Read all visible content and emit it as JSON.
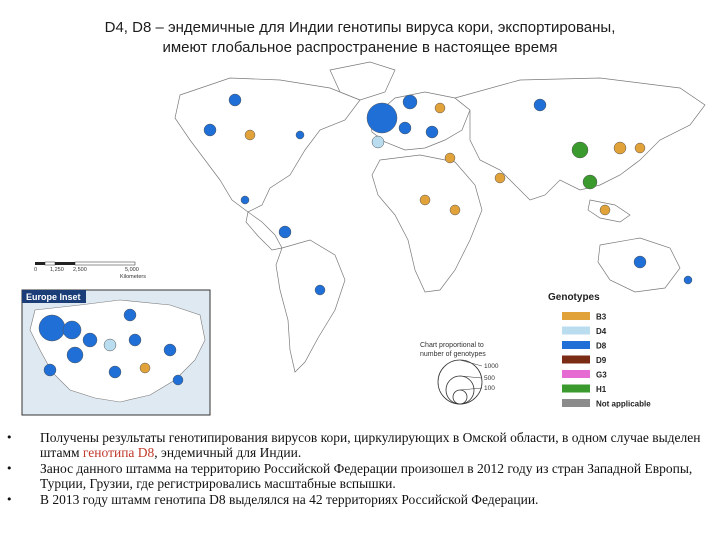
{
  "title": {
    "line1": "D4, D8 – эндемичные для Индии генотипы вируса кори, экспортированы,",
    "line2": "имеют глобальное распространение в настоящее время"
  },
  "map": {
    "scale_labels": [
      "0",
      "1,250",
      "2,500",
      "5,000"
    ],
    "scale_unit": "Kilometers",
    "inset_title": "Europe Inset",
    "chart_note_line1": "Chart proportional to",
    "chart_note_line2": "number of genotypes",
    "size_legend": [
      "1000",
      "500",
      "100"
    ],
    "legend_title": "Genotypes",
    "genotypes": [
      {
        "label": "B3",
        "color": "#e2a23a"
      },
      {
        "label": "D4",
        "color": "#b9dcef"
      },
      {
        "label": "D8",
        "color": "#1f6fd6"
      },
      {
        "label": "D9",
        "color": "#7a2c14"
      },
      {
        "label": "G3",
        "color": "#e56ad1"
      },
      {
        "label": "H1",
        "color": "#3a9a2d"
      },
      {
        "label": "Not applicable",
        "color": "#8b8b8b"
      }
    ]
  },
  "bullets": {
    "b1_part1": "Получены результаты генотипирования вирусов кори, циркулирующих в Омской области, в одном случае выделен штамм ",
    "b1_highlight": "генотипа D8",
    "b1_part2": ", эндемичный для Индии.",
    "b2": "Занос данного штамма на территорию Российской Федерации произошел в 2012 году из стран Западной Европы, Турции, Грузии, где регистрировались масштабные вспышки.",
    "b3": "В 2013 году штамм генотипа D8 выделялся на 42 территориях Российской Федерации."
  }
}
